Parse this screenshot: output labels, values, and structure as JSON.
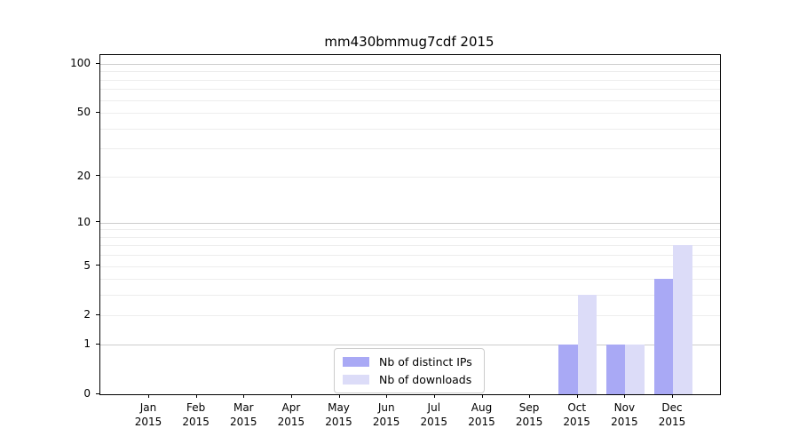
{
  "title": "mm430bmmug7cdf 2015",
  "colors": {
    "distinct_ips": "#a9a9f5",
    "downloads": "#dcdcf8",
    "grid_major": "#cdcdcd",
    "grid_minor": "#ededed",
    "axis": "#000000",
    "legend_border": "#cccccc",
    "text": "#000000"
  },
  "legend": {
    "items": [
      {
        "label": "Nb of distinct IPs",
        "color_key": "distinct_ips"
      },
      {
        "label": "Nb of downloads",
        "color_key": "downloads"
      }
    ]
  },
  "chart_data": {
    "type": "bar",
    "title": "mm430bmmug7cdf 2015",
    "x_labels": [
      {
        "month": "Jan",
        "year": "2015"
      },
      {
        "month": "Feb",
        "year": "2015"
      },
      {
        "month": "Mar",
        "year": "2015"
      },
      {
        "month": "Apr",
        "year": "2015"
      },
      {
        "month": "May",
        "year": "2015"
      },
      {
        "month": "Jun",
        "year": "2015"
      },
      {
        "month": "Jul",
        "year": "2015"
      },
      {
        "month": "Aug",
        "year": "2015"
      },
      {
        "month": "Sep",
        "year": "2015"
      },
      {
        "month": "Oct",
        "year": "2015"
      },
      {
        "month": "Nov",
        "year": "2015"
      },
      {
        "month": "Dec",
        "year": "2015"
      }
    ],
    "series": [
      {
        "name": "Nb of distinct IPs",
        "values": [
          0,
          0,
          0,
          0,
          0,
          0,
          0,
          0,
          0,
          1,
          1,
          4
        ]
      },
      {
        "name": "Nb of downloads",
        "values": [
          0,
          0,
          0,
          0,
          0,
          0,
          0,
          0,
          0,
          3,
          1,
          7
        ]
      }
    ],
    "y_scale": "log10(1+value)",
    "y_ticks_labeled": [
      0,
      1,
      2,
      5,
      10,
      20,
      50,
      100
    ],
    "y_gridlines_major": [
      1,
      10,
      100
    ],
    "y_gridlines_minor": [
      2,
      3,
      4,
      5,
      6,
      7,
      8,
      9,
      20,
      30,
      40,
      50,
      60,
      70,
      80,
      90
    ],
    "ylim": [
      0,
      113
    ],
    "grid": true,
    "legend_position": "lower center"
  }
}
